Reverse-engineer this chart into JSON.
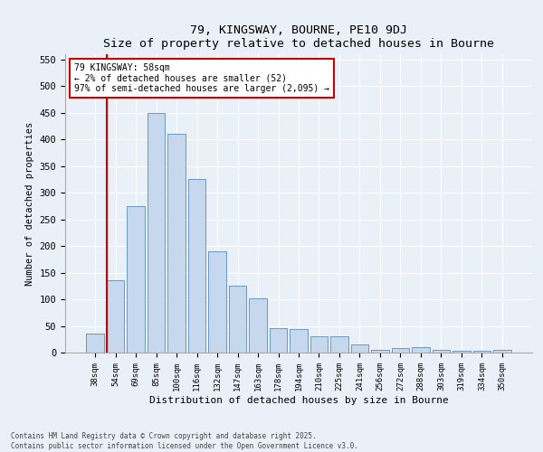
{
  "title1": "79, KINGSWAY, BOURNE, PE10 9DJ",
  "title2": "Size of property relative to detached houses in Bourne",
  "xlabel": "Distribution of detached houses by size in Bourne",
  "ylabel": "Number of detached properties",
  "categories": [
    "38sqm",
    "54sqm",
    "69sqm",
    "85sqm",
    "100sqm",
    "116sqm",
    "132sqm",
    "147sqm",
    "163sqm",
    "178sqm",
    "194sqm",
    "210sqm",
    "225sqm",
    "241sqm",
    "256sqm",
    "272sqm",
    "288sqm",
    "303sqm",
    "319sqm",
    "334sqm",
    "350sqm"
  ],
  "values": [
    35,
    135,
    275,
    450,
    410,
    325,
    190,
    125,
    102,
    46,
    44,
    30,
    30,
    15,
    5,
    8,
    10,
    5,
    4,
    3,
    5
  ],
  "bar_color": "#c5d8ee",
  "bar_edge_color": "#5b8db8",
  "vline_x": 1,
  "vline_color": "#cc0000",
  "annotation_text": "79 KINGSWAY: 58sqm\n← 2% of detached houses are smaller (52)\n97% of semi-detached houses are larger (2,095) →",
  "annotation_box_color": "#ffffff",
  "annotation_box_edge": "#cc0000",
  "ylim": [
    0,
    560
  ],
  "yticks": [
    0,
    50,
    100,
    150,
    200,
    250,
    300,
    350,
    400,
    450,
    500,
    550
  ],
  "footnote1": "Contains HM Land Registry data © Crown copyright and database right 2025.",
  "footnote2": "Contains public sector information licensed under the Open Government Licence v3.0.",
  "bg_color": "#eaf0f8",
  "plot_bg_color": "#eaf0f8"
}
